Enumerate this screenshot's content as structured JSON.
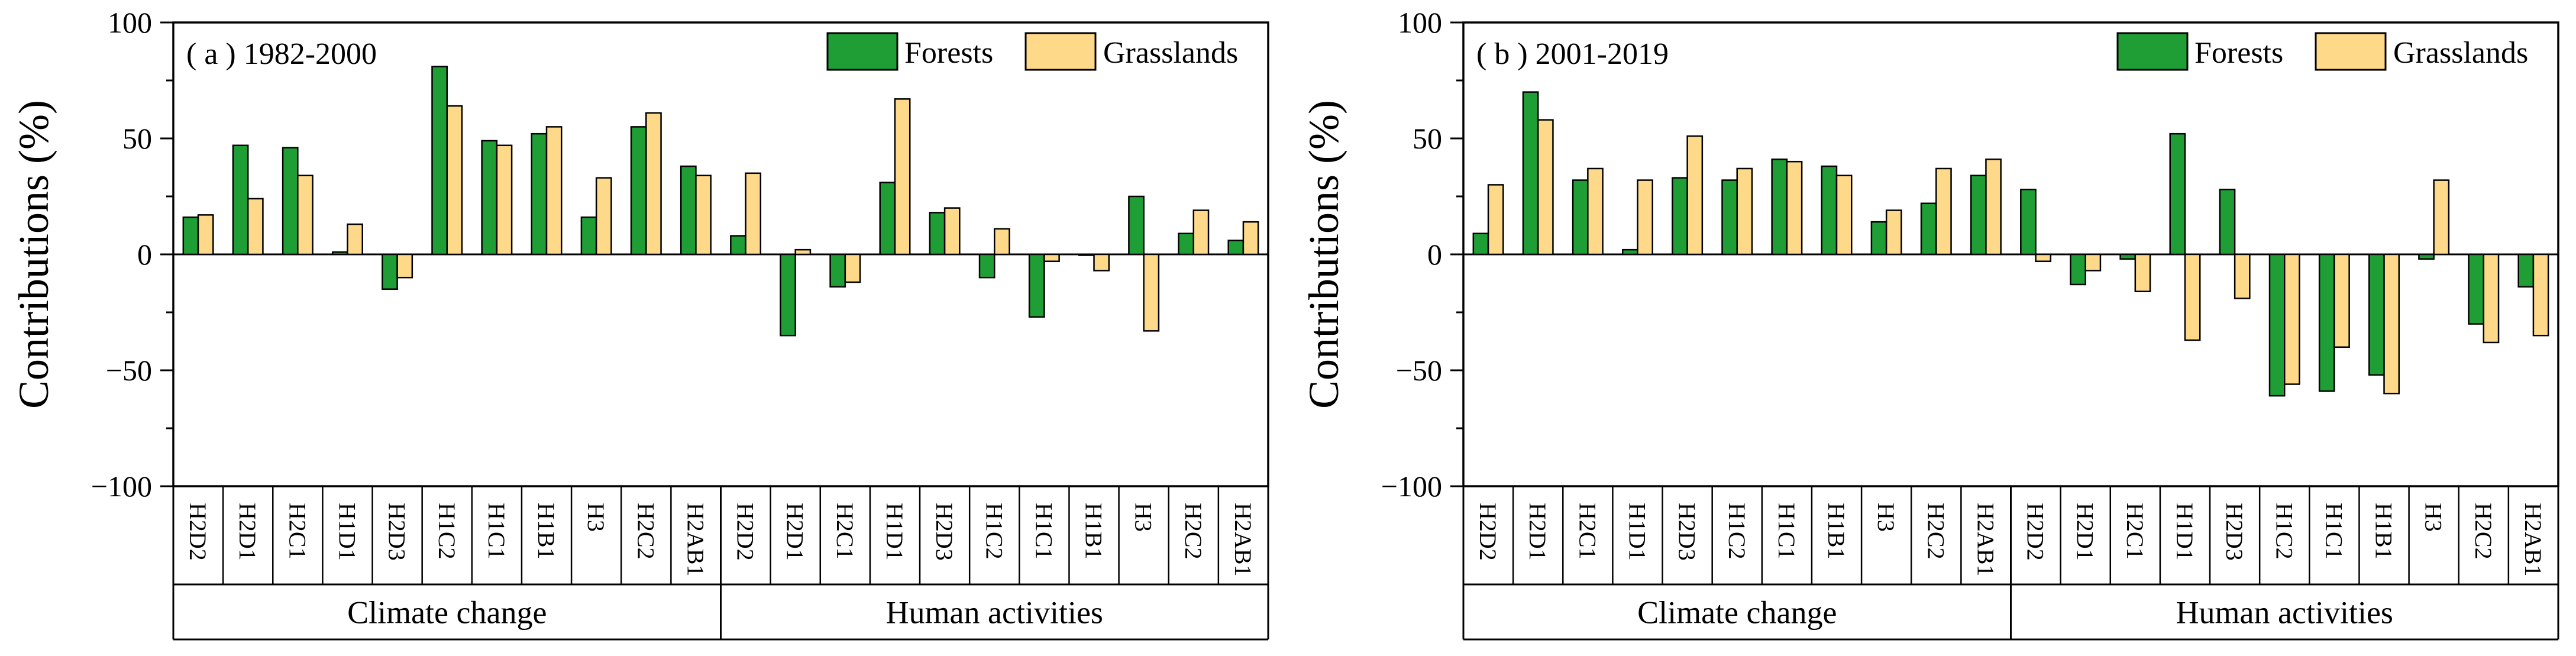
{
  "figure": {
    "series_names": [
      "Forests",
      "Grasslands"
    ],
    "colors": {
      "forests": "#1e9e35",
      "grasslands": "#ffd98a",
      "edge": "#000000"
    }
  },
  "chart_data": [
    {
      "type": "bar",
      "title": "( a ) 1982-2000",
      "ylabel": "Contributions (%)",
      "ylim": [
        -100,
        100
      ],
      "yticks": [
        "100",
        "50",
        "0",
        "−50",
        "−100"
      ],
      "groups": [
        "Climate change",
        "Human activities"
      ],
      "categories": [
        "H2D2",
        "H2D1",
        "H2C1",
        "H1D1",
        "H2D3",
        "H1C2",
        "H1C1",
        "H1B1",
        "H3",
        "H2C2",
        "H2AB1"
      ],
      "legend": {
        "entries": [
          "Forests",
          "Grasslands"
        ],
        "placement": "top-right"
      },
      "series": [
        {
          "name": "Forests",
          "group": "Climate change",
          "values": [
            16,
            47,
            46,
            1,
            -15,
            81,
            49,
            52,
            16,
            55,
            38
          ]
        },
        {
          "name": "Grasslands",
          "group": "Climate change",
          "values": [
            17,
            24,
            34,
            13,
            -10,
            64,
            47,
            55,
            33,
            61,
            34
          ]
        },
        {
          "name": "Forests",
          "group": "Human activities",
          "values": [
            8,
            -35,
            -14,
            31,
            18,
            -10,
            -27,
            0,
            25,
            9,
            6
          ]
        },
        {
          "name": "Grasslands",
          "group": "Human activities",
          "values": [
            35,
            2,
            -12,
            67,
            20,
            11,
            -3,
            -7,
            -33,
            19,
            14
          ]
        }
      ]
    },
    {
      "type": "bar",
      "title": "( b ) 2001-2019",
      "ylabel": "Contributions (%)",
      "ylim": [
        -100,
        100
      ],
      "yticks": [
        "100",
        "50",
        "0",
        "−50",
        "−100"
      ],
      "groups": [
        "Climate change",
        "Human activities"
      ],
      "categories": [
        "H2D2",
        "H2D1",
        "H2C1",
        "H1D1",
        "H2D3",
        "H1C2",
        "H1C1",
        "H1B1",
        "H3",
        "H2C2",
        "H2AB1"
      ],
      "legend": {
        "entries": [
          "Forests",
          "Grasslands"
        ],
        "placement": "top-right"
      },
      "series": [
        {
          "name": "Forests",
          "group": "Climate change",
          "values": [
            9,
            70,
            32,
            2,
            33,
            32,
            41,
            38,
            14,
            22,
            34
          ]
        },
        {
          "name": "Grasslands",
          "group": "Climate change",
          "values": [
            30,
            58,
            37,
            32,
            51,
            37,
            40,
            34,
            19,
            37,
            41
          ]
        },
        {
          "name": "Forests",
          "group": "Human activities",
          "values": [
            28,
            -13,
            -2,
            52,
            28,
            -61,
            -59,
            -52,
            -2,
            -30,
            -14
          ]
        },
        {
          "name": "Grasslands",
          "group": "Human activities",
          "values": [
            -3,
            -7,
            -16,
            -37,
            -19,
            -56,
            -40,
            -60,
            32,
            -38,
            -35
          ]
        }
      ]
    }
  ]
}
